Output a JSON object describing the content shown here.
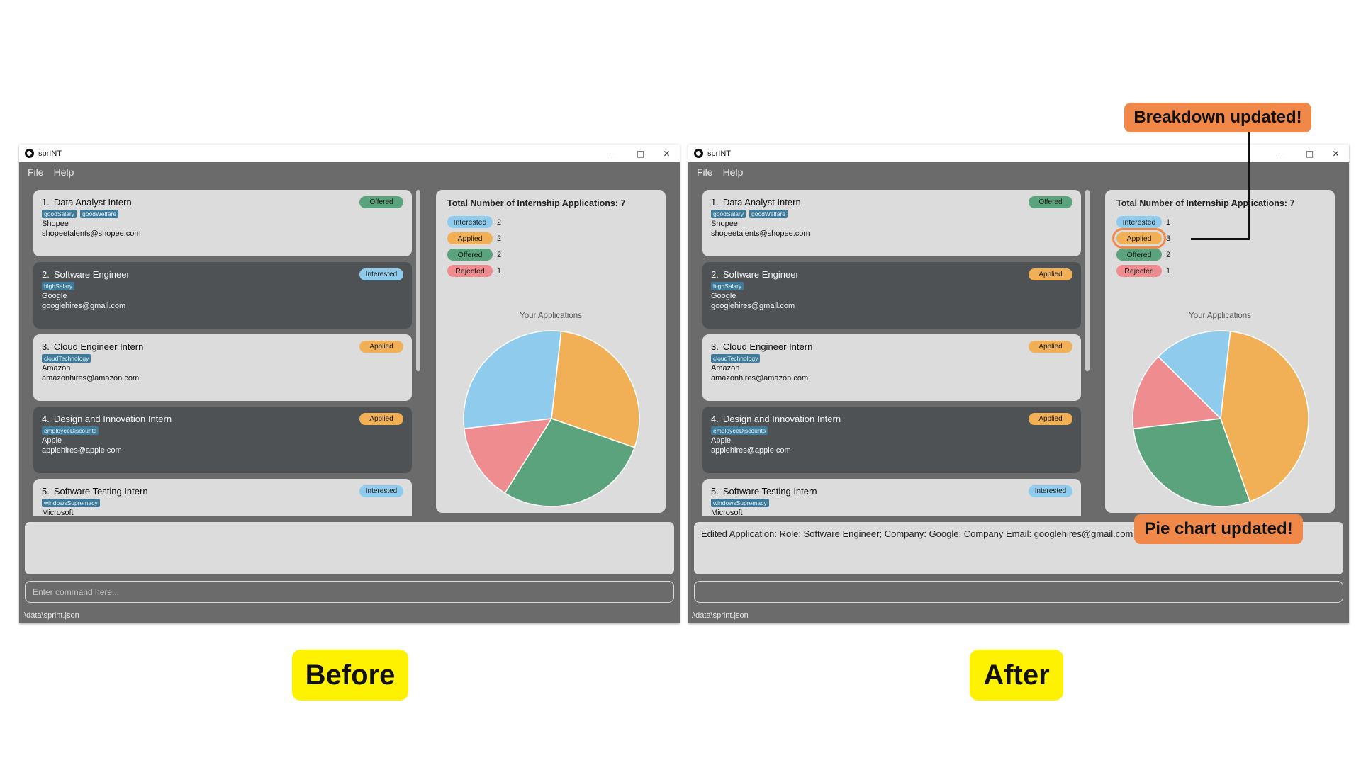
{
  "colors": {
    "window_bg": "#6b6b6b",
    "card_light": "#dcdcdc",
    "card_dark": "#4f5254",
    "tag": "#3e7a99",
    "Offered": "#5ba37c",
    "Interested": "#8fcbed",
    "Applied": "#f2b056",
    "Rejected": "#ef8c8f",
    "callout": "#f0884a",
    "label_bg": "#fff200"
  },
  "window_title": "sprINT",
  "menu": [
    "File",
    "Help"
  ],
  "before": {
    "label": "Before",
    "applications": [
      {
        "index": "1.",
        "role": "Data Analyst Intern",
        "tags": [
          "goodSalary",
          "goodWelfare"
        ],
        "company": "Shopee",
        "email": "shopeetalents@shopee.com",
        "status": "Offered"
      },
      {
        "index": "2.",
        "role": "Software Engineer",
        "tags": [
          "highSalary"
        ],
        "company": "Google",
        "email": "googlehires@gmail.com",
        "status": "Interested"
      },
      {
        "index": "3.",
        "role": "Cloud Engineer Intern",
        "tags": [
          "cloudTechnology"
        ],
        "company": "Amazon",
        "email": "amazonhires@amazon.com",
        "status": "Applied"
      },
      {
        "index": "4.",
        "role": "Design and Innovation Intern",
        "tags": [
          "employeeDiscounts"
        ],
        "company": "Apple",
        "email": "applehires@apple.com",
        "status": "Applied"
      },
      {
        "index": "5.",
        "role": "Software Testing Intern",
        "tags": [
          "windowsSupremacy"
        ],
        "company": "Microsoft",
        "email": "",
        "status": "Interested"
      }
    ],
    "stats": {
      "total_text": "Total Number of Internship Applications: 7",
      "rows": [
        {
          "label": "Interested",
          "count": "2"
        },
        {
          "label": "Applied",
          "count": "2"
        },
        {
          "label": "Offered",
          "count": "2"
        },
        {
          "label": "Rejected",
          "count": "1"
        }
      ],
      "chart_title": "Your Applications"
    },
    "result_text": "",
    "command_placeholder": "Enter command here...",
    "status_path": ".\\data\\sprint.json"
  },
  "after": {
    "label": "After",
    "applications": [
      {
        "index": "1.",
        "role": "Data Analyst Intern",
        "tags": [
          "goodSalary",
          "goodWelfare"
        ],
        "company": "Shopee",
        "email": "shopeetalents@shopee.com",
        "status": "Offered"
      },
      {
        "index": "2.",
        "role": "Software Engineer",
        "tags": [
          "highSalary"
        ],
        "company": "Google",
        "email": "googlehires@gmail.com",
        "status": "Applied"
      },
      {
        "index": "3.",
        "role": "Cloud Engineer Intern",
        "tags": [
          "cloudTechnology"
        ],
        "company": "Amazon",
        "email": "amazonhires@amazon.com",
        "status": "Applied"
      },
      {
        "index": "4.",
        "role": "Design and Innovation Intern",
        "tags": [
          "employeeDiscounts"
        ],
        "company": "Apple",
        "email": "applehires@apple.com",
        "status": "Applied"
      },
      {
        "index": "5.",
        "role": "Software Testing Intern",
        "tags": [
          "windowsSupremacy"
        ],
        "company": "Microsoft",
        "email": "",
        "status": "Interested"
      }
    ],
    "stats": {
      "total_text": "Total Number of Internship Applications: 7",
      "rows": [
        {
          "label": "Interested",
          "count": "1"
        },
        {
          "label": "Applied",
          "count": "3"
        },
        {
          "label": "Offered",
          "count": "2"
        },
        {
          "label": "Rejected",
          "count": "1"
        }
      ],
      "chart_title": "Your Applications"
    },
    "result_text": "Edited Application: Role: Software Engineer; Company: Google; Company Email: googlehires@gmail.com",
    "command_placeholder": "",
    "status_path": ".\\data\\sprint.json"
  },
  "annotations": {
    "breakdown_callout": "Breakdown updated!",
    "pie_callout": "Pie chart updated!"
  },
  "chart_data": [
    {
      "type": "pie",
      "title": "Your Applications",
      "categories": [
        "Applied",
        "Offered",
        "Rejected",
        "Interested"
      ],
      "values": [
        2,
        2,
        1,
        2
      ]
    },
    {
      "type": "pie",
      "title": "Your Applications",
      "categories": [
        "Applied",
        "Offered",
        "Rejected",
        "Interested"
      ],
      "values": [
        3,
        2,
        1,
        1
      ]
    }
  ]
}
